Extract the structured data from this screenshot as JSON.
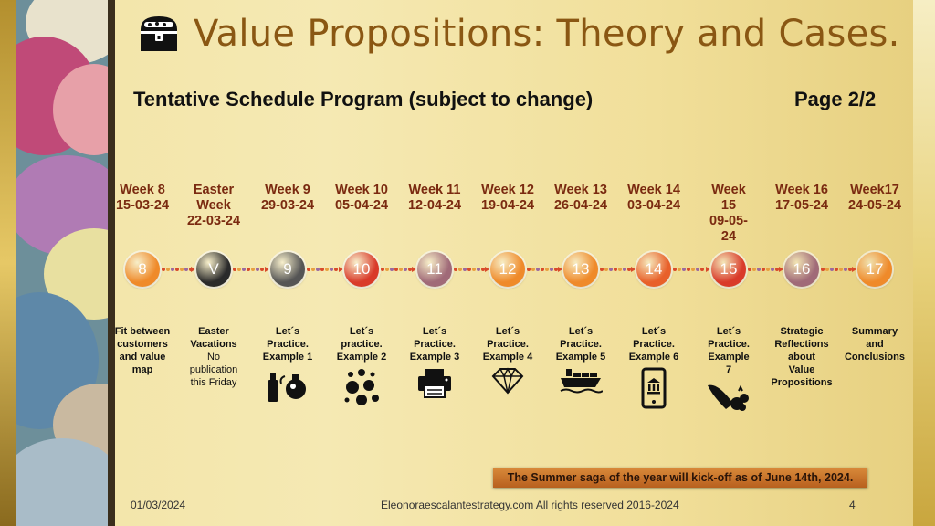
{
  "title": "Value Propositions: Theory and Cases.",
  "title_icon": "treasure-chest-icon",
  "subtitle": "Tentative Schedule Program (subject to change)",
  "page_label": "Page 2/2",
  "weeks": [
    {
      "head": "Week 8",
      "date": "15-03-24",
      "node": "8",
      "color": "#ef8a2a",
      "desc": [
        "Fit between",
        "customers",
        "and value",
        "map"
      ],
      "note": [],
      "icon": ""
    },
    {
      "head": "Easter",
      "head2": "Week",
      "date": "22-03-24",
      "node": "V",
      "color": "#2a2a2a",
      "desc": [
        "Easter",
        "Vacations"
      ],
      "note": [
        "No",
        "publication",
        "this Friday"
      ],
      "icon": ""
    },
    {
      "head": "Week 9",
      "date": "29-03-24",
      "node": "9",
      "color": "#555555",
      "desc": [
        "Let´s",
        "Practice.",
        "Example 1"
      ],
      "note": [],
      "icon": "lipstick-perfume-icon"
    },
    {
      "head": "Week 10",
      "date": "05-04-24",
      "node": "10",
      "color": "#d93a2a",
      "desc": [
        "Let´s",
        "practice.",
        "Example 2"
      ],
      "note": [],
      "icon": "bubbles-icon"
    },
    {
      "head": "Week 11",
      "date": "12-04-24",
      "node": "11",
      "color": "#a06a78",
      "desc": [
        "Let´s",
        "Practice.",
        "Example 3"
      ],
      "note": [],
      "icon": "printer-icon"
    },
    {
      "head": "Week 12",
      "date": "19-04-24",
      "node": "12",
      "color": "#ef8a2a",
      "desc": [
        "Let´s",
        "Practice.",
        "Example 4"
      ],
      "note": [],
      "icon": "diamond-icon"
    },
    {
      "head": "Week 13",
      "date": "26-04-24",
      "node": "13",
      "color": "#ef8a2a",
      "desc": [
        "Let´s",
        "Practice.",
        "Example 5"
      ],
      "note": [],
      "icon": "cargo-ship-icon"
    },
    {
      "head": "Week 14",
      "date": "03-04-24",
      "node": "14",
      "color": "#e8602a",
      "desc": [
        "Let´s",
        "Practice.",
        "Example 6"
      ],
      "note": [],
      "icon": "mobile-bank-icon"
    },
    {
      "head": "Week",
      "head2": "15",
      "date": "09-05-",
      "date2": "24",
      "node": "15",
      "color": "#d93a2a",
      "desc": [
        "Let´s",
        "Practice.",
        "Example",
        "7"
      ],
      "note": [],
      "icon": "cornucopia-icon"
    },
    {
      "head": "Week 16",
      "date": "17-05-24",
      "node": "16",
      "color": "#a06a78",
      "desc": [
        "Strategic",
        "Reflections",
        "about",
        "Value",
        "Propositions"
      ],
      "note": [],
      "icon": ""
    },
    {
      "head": "Week17",
      "date": "24-05-24",
      "node": "17",
      "color": "#ef8a2a",
      "desc": [
        "Summary",
        "and",
        "Conclusions"
      ],
      "note": [],
      "icon": ""
    }
  ],
  "banner": "The Summer saga of the year will kick-off as of June 14th, 2024.",
  "footer": {
    "date": "01/03/2024",
    "copyright": "Eleonoraescalantestrategy.com  All rights reserved 2016-2024",
    "page": "4"
  }
}
